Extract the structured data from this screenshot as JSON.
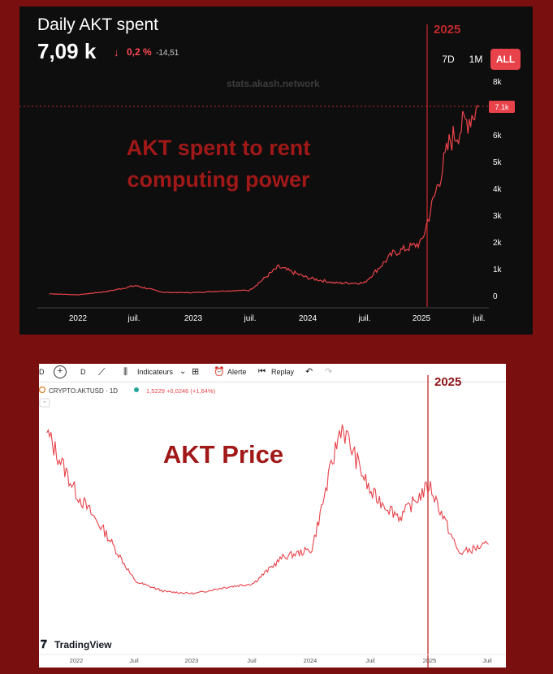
{
  "colors": {
    "background": "#7a0f10",
    "top_panel": "#0e0e0e",
    "line": "#e8434a",
    "annotation": "#a01818",
    "marker": "#c0282b",
    "button_active": "#e8434a"
  },
  "top_chart": {
    "title": "Daily AKT spent",
    "value": "7,09 k",
    "change_arrow": "↓",
    "change_pct": "0,2 %",
    "change_abs": "-14,51",
    "watermark": "stats.akash.network",
    "annotation": [
      "AKT spent to rent",
      "computing power"
    ],
    "marker_label": "2025",
    "current_badge": "7.1k",
    "timeframes": [
      "7D",
      "1M",
      "ALL"
    ],
    "active_timeframe": "ALL",
    "y_ticks": [
      "8k",
      "7k",
      "6k",
      "5k",
      "4k",
      "3k",
      "2k",
      "1k",
      "0"
    ],
    "x_ticks": [
      "2022",
      "juil.",
      "2023",
      "juil.",
      "2024",
      "juil.",
      "2025",
      "juil."
    ]
  },
  "bottom_chart": {
    "toolbar": {
      "interval": "D",
      "chart_style": "D",
      "indicators": "Indicateurs",
      "alert": "Alerte",
      "replay": "Replay"
    },
    "symbol": "CRYPTO:AKTUSD · 1D",
    "quote": "1,5229 +0,0246 (+1,64%)",
    "annotation": "AKT Price",
    "marker_label": "2025",
    "logo": "TradingView",
    "x_ticks": [
      "2022",
      "Juil",
      "2023",
      "Juil",
      "2024",
      "Juil",
      "2025",
      "Juil"
    ]
  },
  "chart_data": [
    {
      "type": "line",
      "title": "Daily AKT spent",
      "ylim": [
        0,
        8000
      ],
      "x": [
        "2021-10",
        "2022-01",
        "2022-04",
        "2022-07",
        "2022-10",
        "2023-01",
        "2023-04",
        "2023-07",
        "2023-10",
        "2024-01",
        "2024-04",
        "2024-07",
        "2024-10",
        "2025-01",
        "2025-04",
        "2025-07"
      ],
      "values": [
        100,
        60,
        180,
        400,
        150,
        140,
        200,
        230,
        1100,
        700,
        500,
        500,
        1600,
        2000,
        5800,
        7090
      ],
      "annotations": [
        "AKT spent to rent computing power",
        "2025"
      ]
    },
    {
      "type": "line",
      "title": "CRYPTO:AKTUSD · 1D",
      "x": [
        "2021-10",
        "2022-01",
        "2022-04",
        "2022-07",
        "2022-10",
        "2023-01",
        "2023-04",
        "2023-07",
        "2023-10",
        "2024-01",
        "2024-04",
        "2024-07",
        "2024-10",
        "2025-01",
        "2025-04",
        "2025-07"
      ],
      "values": [
        4.3,
        2.8,
        1.8,
        0.6,
        0.35,
        0.3,
        0.45,
        0.55,
        1.2,
        1.4,
        4.5,
        2.8,
        2.2,
        3.0,
        1.3,
        1.5229
      ],
      "last_value": 1.5229,
      "change": 0.0246,
      "change_pct": 1.64,
      "annotations": [
        "AKT Price",
        "2025"
      ]
    }
  ]
}
